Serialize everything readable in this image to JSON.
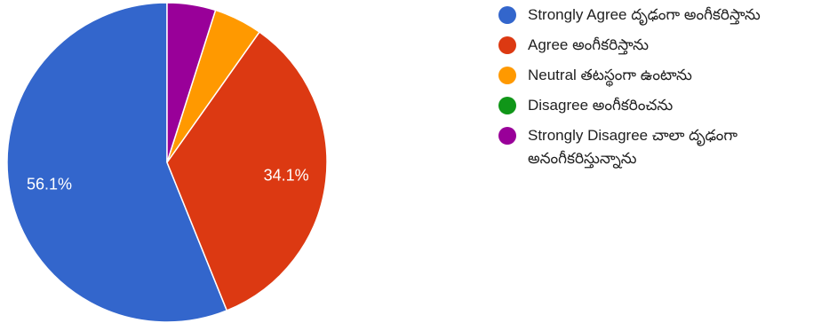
{
  "chart_data": {
    "type": "pie",
    "title": "",
    "start_angle_deg": 90,
    "slices": [
      {
        "label": "Strongly Agree దృఢంగా అంగీకరిస్తాను",
        "value": 56.1,
        "display": "56.1%",
        "color": "#3366cc"
      },
      {
        "label": "Agree అంగీకరిస్తాను",
        "value": 34.1,
        "display": "34.1%",
        "color": "#dc3912"
      },
      {
        "label": "Neutral తటస్థంగా ఉంటాను",
        "value": 4.9,
        "display": "",
        "color": "#ff9900"
      },
      {
        "label": "Disagree అంగీకరించను",
        "value": 0,
        "display": "",
        "color": "#109618"
      },
      {
        "label": "Strongly Disagree చాలా దృఢంగా అనంగీకరిస్తున్నాను",
        "value": 4.9,
        "display": "",
        "color": "#990099"
      }
    ],
    "legend_position": "right"
  }
}
